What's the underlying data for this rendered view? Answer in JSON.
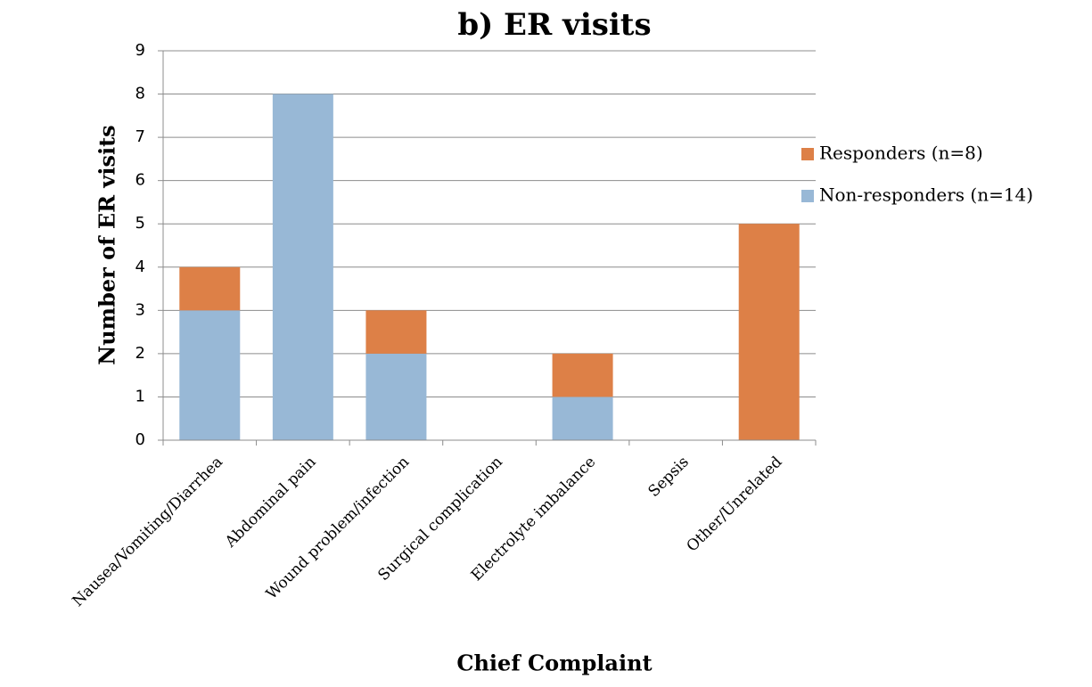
{
  "chart_data": {
    "type": "stacked_bar",
    "title": "b) ER visits",
    "x_label": "Chief Complaint",
    "y_label": "Number of ER visits",
    "categories": [
      "Nausea/Vomiting/Diarrhea",
      "Abdominal  pain",
      "Wound problem/infection",
      "Surgical complication",
      "Electrolyte imbalance",
      "Sepsis",
      "Other/Unrelated"
    ],
    "series": [
      {
        "name": "Non-responders (n=14)",
        "color": "#98b8d6",
        "values": [
          3,
          8,
          2,
          0,
          1,
          0,
          0
        ]
      },
      {
        "name": "Responders (n=8)",
        "color": "#dd8047",
        "values": [
          1,
          0,
          1,
          0,
          1,
          0,
          5
        ]
      }
    ],
    "ylim": [
      0,
      9
    ],
    "yticks": [
      0,
      1,
      2,
      3,
      4,
      5,
      6,
      7,
      8,
      9
    ],
    "grid": true,
    "legend": "right"
  }
}
